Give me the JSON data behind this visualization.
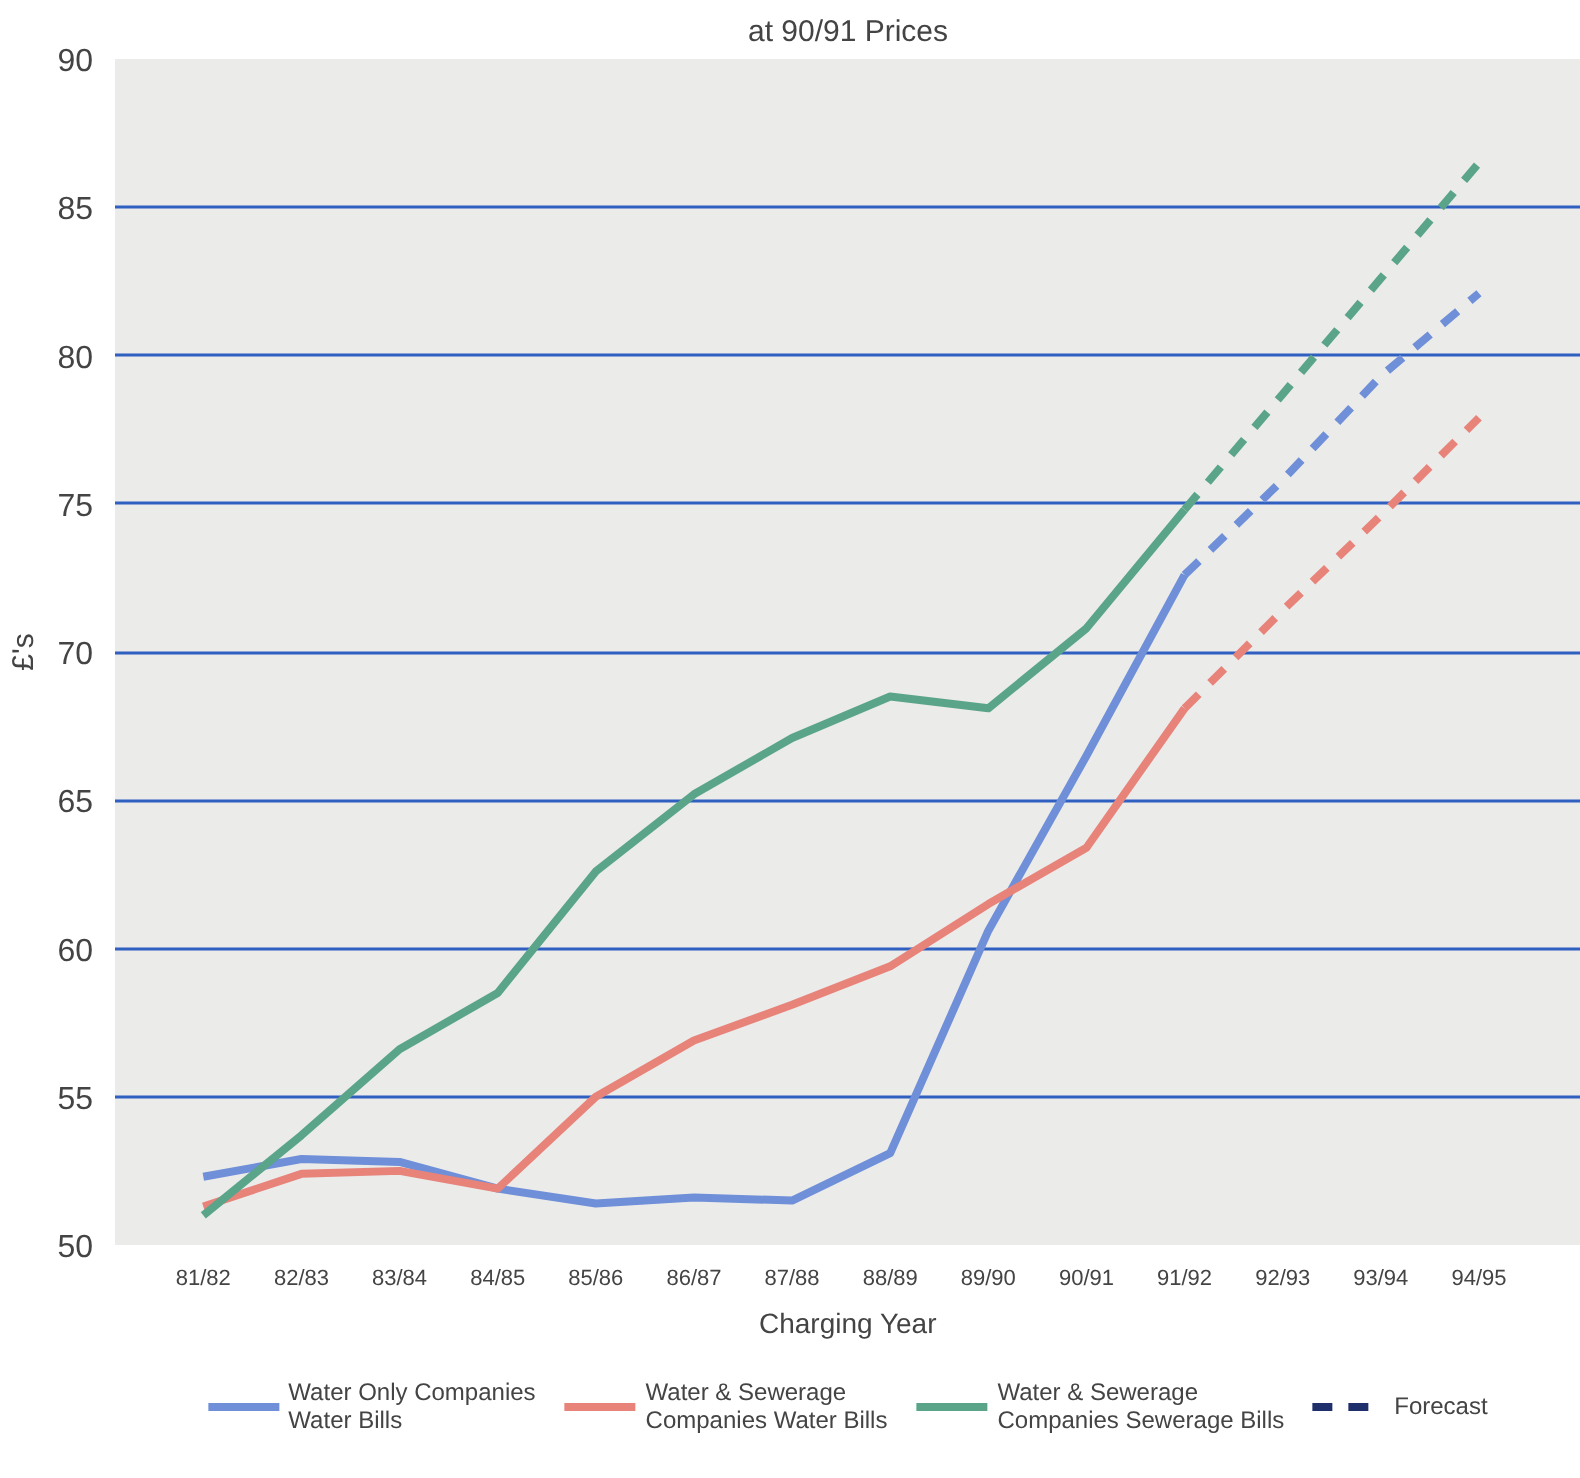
{
  "chart_data": {
    "type": "line",
    "subtitle": "at 90/91 Prices",
    "xlabel": "Charging Year",
    "ylabel": "£'s",
    "categories": [
      "81/82",
      "82/83",
      "83/84",
      "84/85",
      "85/86",
      "86/87",
      "87/88",
      "88/89",
      "89/90",
      "90/91",
      "91/92",
      "92/93",
      "93/94",
      "94/95"
    ],
    "ylim": [
      50,
      90
    ],
    "yticks": [
      50,
      55,
      60,
      65,
      70,
      75,
      80,
      85,
      90
    ],
    "grid": "y",
    "legend": "bottom",
    "line_style": "solid",
    "series": [
      {
        "name": "Water Only Companies Water Bills",
        "color": "#6f8fd8",
        "values": [
          52.3,
          52.9,
          52.8,
          51.9,
          51.4,
          51.6,
          51.5,
          53.1,
          60.6,
          66.5,
          72.6,
          null,
          null,
          null
        ]
      },
      {
        "name": "Water & Sewerage Companies Water Bills",
        "color": "#e8837a",
        "values": [
          51.3,
          52.4,
          52.5,
          51.9,
          55.0,
          56.9,
          58.1,
          59.4,
          61.5,
          63.4,
          68.1,
          null,
          null,
          null
        ]
      },
      {
        "name": "Water & Sewerage Companies Sewerage Bills",
        "color": "#5aa58a",
        "values": [
          51.0,
          53.7,
          56.6,
          58.5,
          62.6,
          65.2,
          67.1,
          68.5,
          68.1,
          70.8,
          74.8,
          null,
          null,
          null
        ]
      },
      {
        "color": "#6f8fd8",
        "line_style": "dashed",
        "values": [
          null,
          null,
          null,
          null,
          null,
          null,
          null,
          null,
          null,
          null,
          72.6,
          75.8,
          79.3,
          82.1
        ]
      },
      {
        "color": "#e8837a",
        "line_style": "dashed",
        "values": [
          null,
          null,
          null,
          null,
          null,
          null,
          null,
          null,
          null,
          null,
          68.1,
          71.4,
          74.6,
          77.9
        ]
      },
      {
        "color": "#5aa58a",
        "line_style": "dashed",
        "values": [
          null,
          null,
          null,
          null,
          null,
          null,
          null,
          null,
          null,
          null,
          74.8,
          78.7,
          82.6,
          86.5
        ]
      },
      {
        "name": "Forecast",
        "color": "#1f2f6b",
        "line_style": "dashed",
        "values": [
          null,
          null,
          null,
          null,
          null,
          null,
          null,
          null,
          null,
          null,
          null,
          null,
          null,
          null
        ]
      }
    ]
  }
}
